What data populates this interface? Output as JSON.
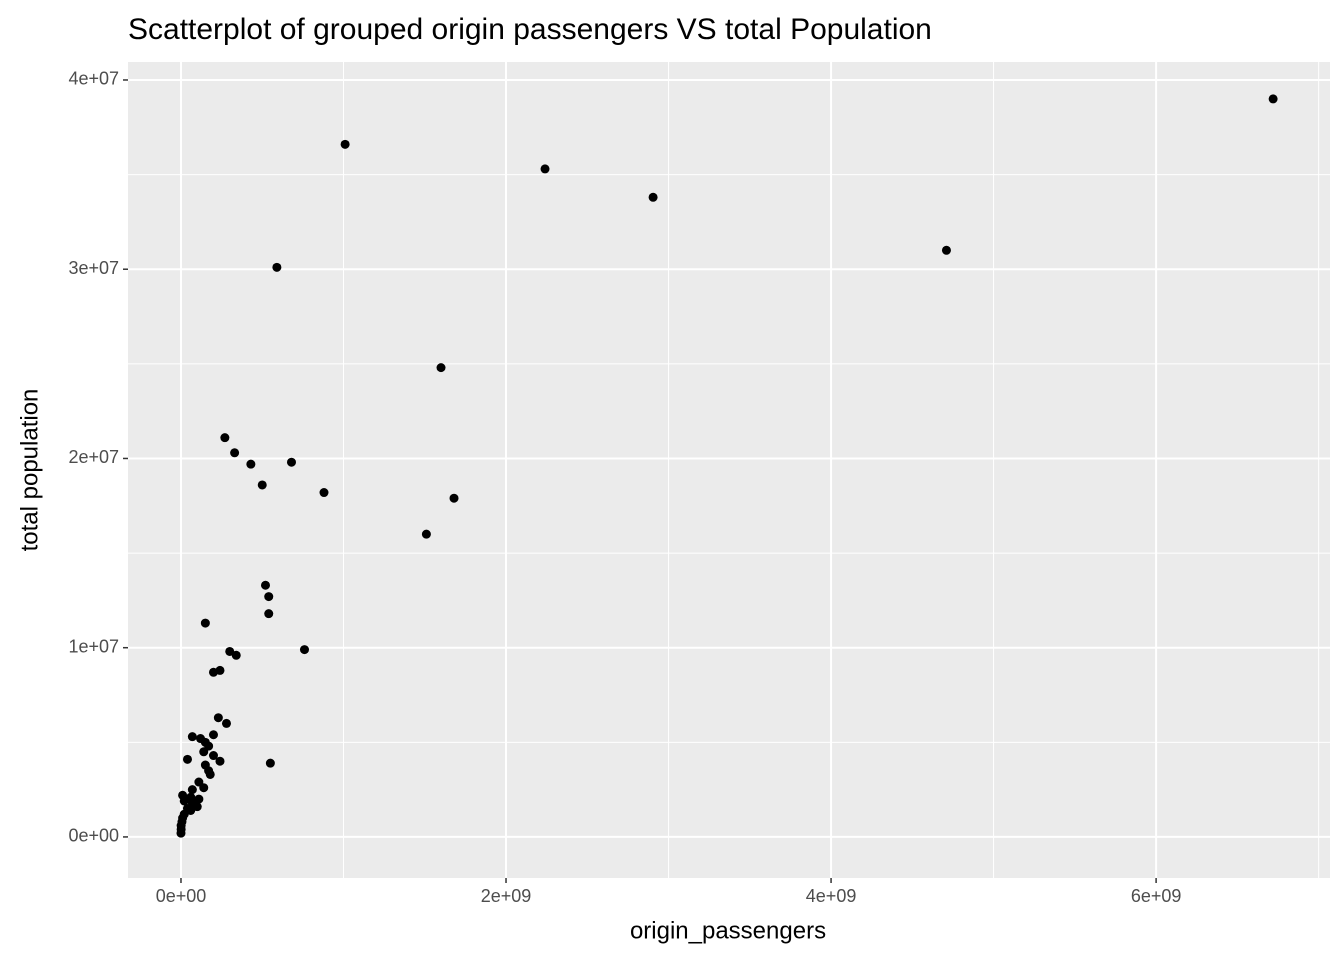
{
  "chart_data": {
    "type": "scatter",
    "title": "Scatterplot of grouped origin passengers VS total Population",
    "xlabel": "origin_passengers",
    "ylabel": "total population",
    "color": "#000000",
    "background": "#ebebeb",
    "grid": true,
    "x": [
      6720000000,
      1010000000,
      2240000000,
      2905000000,
      4710000000,
      590000000,
      1600000000,
      270000000,
      330000000,
      430000000,
      680000000,
      500000000,
      880000000,
      1680000000,
      1510000000,
      520000000,
      540000000,
      540000000,
      150000000,
      760000000,
      300000000,
      340000000,
      240000000,
      200000000,
      230000000,
      280000000,
      200000000,
      70000000,
      120000000,
      150000000,
      170000000,
      140000000,
      200000000,
      40000000,
      240000000,
      150000000,
      550000000,
      170000000,
      180000000,
      110000000,
      140000000,
      70000000,
      10000000,
      60000000,
      110000000,
      20000000,
      70000000,
      100000000,
      40000000,
      60000000,
      20000000,
      10000000,
      6000000,
      1000000,
      1000000,
      0
    ],
    "values": [
      39000000,
      36600000,
      35300000,
      33800000,
      31000000,
      30100000,
      24800000,
      21100000,
      20300000,
      19700000,
      19800000,
      18600000,
      18200000,
      17900000,
      16000000,
      13300000,
      12700000,
      11800000,
      11300000,
      9900000,
      9800000,
      9600000,
      8800000,
      8700000,
      6300000,
      6000000,
      5400000,
      5300000,
      5200000,
      5000000,
      4800000,
      4500000,
      4300000,
      4100000,
      4000000,
      3800000,
      3900000,
      3500000,
      3300000,
      2900000,
      2600000,
      2500000,
      2200000,
      2100000,
      2000000,
      1900000,
      1800000,
      1600000,
      1500000,
      1400000,
      1200000,
      1000000,
      800000,
      600000,
      400000,
      200000
    ],
    "xlim": [
      -326000000,
      7070000000
    ],
    "ylim": [
      -2170000,
      40950000
    ],
    "xticks": [
      {
        "value": 0,
        "label": "0e+00"
      },
      {
        "value": 2000000000,
        "label": "2e+09"
      },
      {
        "value": 4000000000,
        "label": "4e+09"
      },
      {
        "value": 6000000000,
        "label": "6e+09"
      }
    ],
    "yticks": [
      {
        "value": 0,
        "label": "0e+00"
      },
      {
        "value": 10000000,
        "label": "1e+07"
      },
      {
        "value": 20000000,
        "label": "2e+07"
      },
      {
        "value": 30000000,
        "label": "3e+07"
      },
      {
        "value": 40000000,
        "label": "4e+07"
      }
    ],
    "x_minor_ticks": [
      1000000000,
      3000000000,
      5000000000,
      7000000000
    ],
    "y_minor_ticks": [
      5000000,
      15000000,
      25000000,
      35000000
    ]
  }
}
